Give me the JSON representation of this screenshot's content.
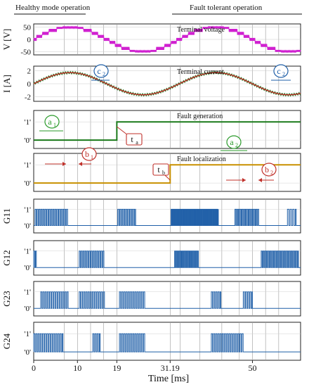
{
  "chart_data": {
    "type": "line",
    "header": {
      "left": "Healthy mode operation",
      "right": "Fault tolerant operation"
    },
    "x_axis": {
      "label": "Time [ms]",
      "range": [
        0,
        61
      ],
      "ticks": [
        0,
        10,
        19,
        31.19,
        50
      ],
      "tick_labels": [
        "0",
        "10",
        "19",
        "31.19",
        "50"
      ]
    },
    "events": {
      "ta_ms": 19,
      "tb_ms": 31.19,
      "ta_label": "t",
      "ta_sub": "a",
      "tb_label": "t",
      "tb_sub": "b"
    },
    "vertical_markers_ms": [
      7,
      10,
      13,
      16,
      19,
      31.19,
      33.5,
      38,
      43,
      47,
      50,
      53,
      56
    ],
    "panels": [
      {
        "id": "voltage",
        "ylabel": "V [V]",
        "title": "Terminal voltage",
        "yticks": [
          50,
          0,
          -50
        ],
        "ylim": [
          -62,
          62
        ],
        "series": {
          "kind": "pwm_sine",
          "amplitude": 50,
          "period_ms": 33.3,
          "color": "#d020d0"
        },
        "annotation": {
          "letter": "c",
          "sub": "1"
        }
      },
      {
        "id": "current",
        "ylabel": "I [A]",
        "title": "Terminal current",
        "yticks": [
          2,
          0,
          -2
        ],
        "ylim": [
          -2.7,
          2.7
        ],
        "series": {
          "kind": "sine",
          "amplitude": 1.7,
          "period_ms": 33.3,
          "color": "#c0302a",
          "ripple_color": "#2a7a2a"
        },
        "annotation": {
          "letter": "c",
          "sub": "2"
        }
      },
      {
        "id": "fault_gen",
        "ylabel": "",
        "title": "Fault generation",
        "yticks": [
          "'1'",
          "'0'"
        ],
        "series": {
          "kind": "step",
          "step_ms": 19,
          "color": "#1a7a1a"
        },
        "annotation": {
          "letter": "a",
          "sub1": "1",
          "sub2": "2"
        }
      },
      {
        "id": "fault_loc",
        "ylabel": "",
        "title": "Fault localization",
        "yticks": [
          "'1'",
          "'0'"
        ],
        "series": {
          "kind": "step",
          "step_ms": 31.19,
          "color": "#c89000"
        },
        "annotation": {
          "letter": "b",
          "sub1": "1",
          "sub2": "2"
        }
      },
      {
        "id": "g11",
        "ylabel": "G11",
        "title": "",
        "yticks": [
          "'1'",
          "'0'"
        ],
        "series": {
          "kind": "gate",
          "color": "#1f5fa8",
          "segments": [
            [
              0.3,
              7.8,
              0.45
            ],
            [
              19.2,
              23.3,
              0.45
            ],
            [
              31.4,
              42.2,
              0.3
            ],
            [
              46,
              51.5,
              0.4
            ],
            [
              58,
              60,
              0.6
            ]
          ]
        }
      },
      {
        "id": "g12",
        "ylabel": "G12",
        "title": "",
        "yticks": [
          "'1'",
          "'0'"
        ],
        "series": {
          "kind": "gate",
          "color": "#1f5fa8",
          "segments": [
            [
              0,
              0.6,
              0.4
            ],
            [
              10.4,
              16.2,
              0.45
            ],
            [
              32.2,
              37.7,
              0.35
            ],
            [
              52,
              60.5,
              0.4
            ]
          ]
        }
      },
      {
        "id": "g23",
        "ylabel": "G23",
        "title": "",
        "yticks": [
          "'1'",
          "'0'"
        ],
        "series": {
          "kind": "gate",
          "color": "#1f5fa8",
          "segments": [
            [
              1.6,
              7.9,
              0.5
            ],
            [
              10.4,
              16.2,
              0.5
            ],
            [
              19.6,
              25.4,
              0.5
            ],
            [
              40.6,
              42.8,
              0.5
            ],
            [
              47.9,
              50,
              0.5
            ]
          ]
        }
      },
      {
        "id": "g24",
        "ylabel": "G24",
        "title": "",
        "yticks": [
          "'1'",
          "'0'"
        ],
        "series": {
          "kind": "gate",
          "color": "#1f5fa8",
          "segments": [
            [
              0,
              6.7,
              0.5
            ],
            [
              13.5,
              15.2,
              0.5
            ],
            [
              19.6,
              25.4,
              0.5
            ],
            [
              40.6,
              48,
              0.5
            ]
          ]
        }
      }
    ]
  }
}
